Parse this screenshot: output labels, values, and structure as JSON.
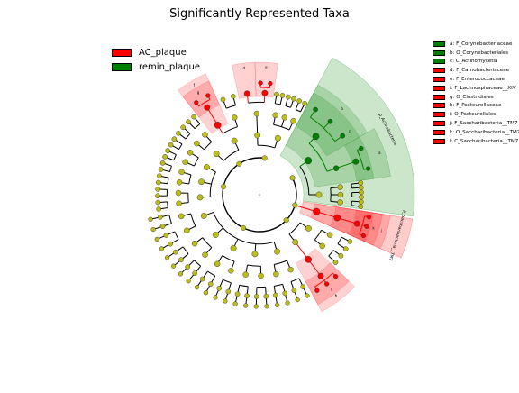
{
  "chart_data": {
    "type": "cladogram",
    "title": "Significantly Represented Taxa",
    "legend_placement": "top-left",
    "groups": [
      {
        "name": "AC_plaque",
        "color": "#ff0000"
      },
      {
        "name": "remin_plaque",
        "color": "#008000"
      }
    ],
    "highlighted_clades": [
      {
        "key": "a",
        "name": "F_Corynebacteriaceae",
        "group": "remin_plaque",
        "color": "#008000"
      },
      {
        "key": "b",
        "name": "O_Corynebacteriales",
        "group": "remin_plaque",
        "color": "#008000"
      },
      {
        "key": "c",
        "name": "C_Actinomycetia",
        "group": "remin_plaque",
        "color": "#008000"
      },
      {
        "key": "d",
        "name": "F_Carnobacteriaceae",
        "group": "AC_plaque",
        "color": "#ff0000"
      },
      {
        "key": "e",
        "name": "F_Enterococcaceae",
        "group": "AC_plaque",
        "color": "#ff0000"
      },
      {
        "key": "f",
        "name": "F_Lachnospiraceae__XIV",
        "group": "AC_plaque",
        "color": "#ff0000"
      },
      {
        "key": "g",
        "name": "O_Clostridiales",
        "group": "AC_plaque",
        "color": "#ff0000"
      },
      {
        "key": "h",
        "name": "F_Pasteurellaceae",
        "group": "AC_plaque",
        "color": "#ff0000"
      },
      {
        "key": "i",
        "name": "O_Pasteurellales",
        "group": "AC_plaque",
        "color": "#ff0000"
      },
      {
        "key": "j",
        "name": "F_Saccharibacteria__TM7",
        "group": "AC_plaque",
        "color": "#ff0000"
      },
      {
        "key": "k",
        "name": "O_Saccharibacteria__TM7",
        "group": "AC_plaque",
        "color": "#ff0000"
      },
      {
        "key": "l",
        "name": "C_Saccharibacteria__TM7",
        "group": "AC_plaque",
        "color": "#ff0000"
      }
    ],
    "sector_labels": [
      {
        "text": "p_Actinobacteria",
        "group": "remin_plaque"
      },
      {
        "text": "p_Saccharibacteria__TM7",
        "group": "AC_plaque"
      }
    ],
    "node_color_default": "#bdbd1a"
  }
}
